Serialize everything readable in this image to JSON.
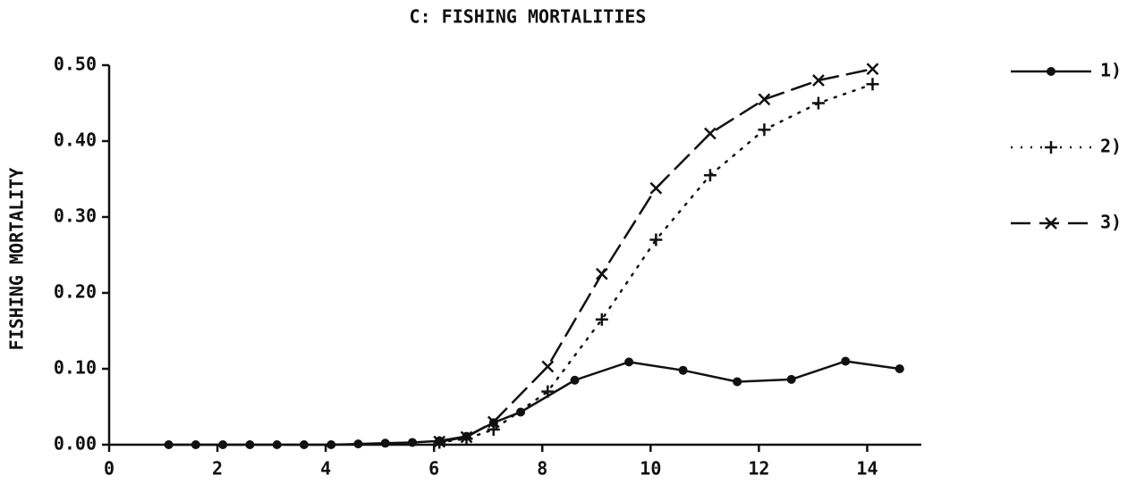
{
  "chart_data": {
    "type": "line",
    "title": "C: FISHING MORTALITIES",
    "ylabel": "FISHING MORTALITY",
    "xlim": [
      0,
      15
    ],
    "xticks": [
      0,
      2,
      4,
      6,
      8,
      10,
      12,
      14
    ],
    "ylim": [
      0,
      0.5
    ],
    "yticks": [
      {
        "value": 0,
        "label": "0.00"
      },
      {
        "value": 0.1,
        "label": "0.10"
      },
      {
        "value": 0.2,
        "label": "0.20"
      },
      {
        "value": 0.3,
        "label": "0.30"
      },
      {
        "value": 0.4,
        "label": "0.40"
      },
      {
        "value": 0.5,
        "label": "0.50"
      }
    ],
    "grid": false,
    "legend": "right",
    "series": [
      {
        "name": "1)",
        "color": "#111111",
        "dash": "solid",
        "marker": "circle",
        "x": [
          1.1,
          1.6,
          2.1,
          2.6,
          3.1,
          3.6,
          4.1,
          4.6,
          5.1,
          5.6,
          6.1,
          6.6,
          7.1,
          7.6,
          8.6,
          9.6,
          10.6,
          11.6,
          12.6,
          13.6,
          14.6
        ],
        "values": [
          0,
          0,
          0,
          0,
          0,
          0,
          0,
          0.001,
          0.002,
          0.003,
          0.005,
          0.011,
          0.029,
          0.043,
          0.085,
          0.109,
          0.098,
          0.083,
          0.086,
          0.11,
          0.1
        ]
      },
      {
        "name": "2)",
        "color": "#111111",
        "dash": "dotted",
        "marker": "plus",
        "x": [
          6.1,
          6.6,
          7.1,
          8.1,
          9.1,
          10.1,
          11.1,
          12.1,
          13.1,
          14.1
        ],
        "values": [
          0.003,
          0.008,
          0.02,
          0.07,
          0.165,
          0.27,
          0.355,
          0.415,
          0.45,
          0.475
        ]
      },
      {
        "name": "3)",
        "color": "#111111",
        "dash": "dashed",
        "marker": "x",
        "x": [
          6.1,
          6.6,
          7.1,
          8.1,
          9.1,
          10.1,
          11.1,
          12.1,
          13.1,
          14.1
        ],
        "values": [
          0.004,
          0.01,
          0.03,
          0.103,
          0.225,
          0.338,
          0.41,
          0.455,
          0.48,
          0.495
        ]
      }
    ]
  }
}
